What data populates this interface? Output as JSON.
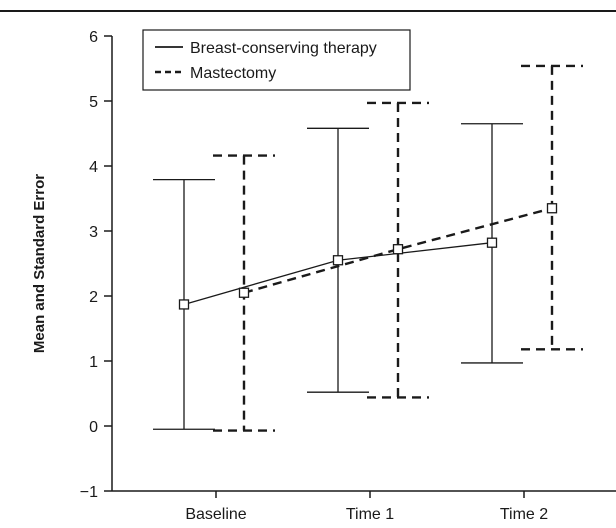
{
  "chart_data": {
    "type": "line",
    "title": "",
    "xlabel": "",
    "ylabel": "Mean and Standard Error",
    "categories": [
      "Baseline",
      "Time 1",
      "Time 2"
    ],
    "ylim": [
      -1,
      6
    ],
    "yticks": [
      "−1",
      "0",
      "1",
      "2",
      "3",
      "4",
      "5",
      "6"
    ],
    "grid": false,
    "legend_position": "top-left",
    "series": [
      {
        "name": "Breast-conserving therapy",
        "line_style": "solid",
        "marker": "square",
        "values": [
          1.87,
          2.55,
          2.82
        ],
        "lower": [
          -0.05,
          0.52,
          0.97
        ],
        "upper": [
          3.79,
          4.58,
          4.65
        ]
      },
      {
        "name": "Mastectomy",
        "line_style": "dashed",
        "marker": "square",
        "values": [
          2.05,
          2.72,
          3.35
        ],
        "lower": [
          -0.07,
          0.44,
          1.18
        ],
        "upper": [
          4.16,
          4.97,
          5.54
        ]
      }
    ],
    "colors": {
      "line": "#1a1a1a",
      "background": "#ffffff"
    }
  }
}
